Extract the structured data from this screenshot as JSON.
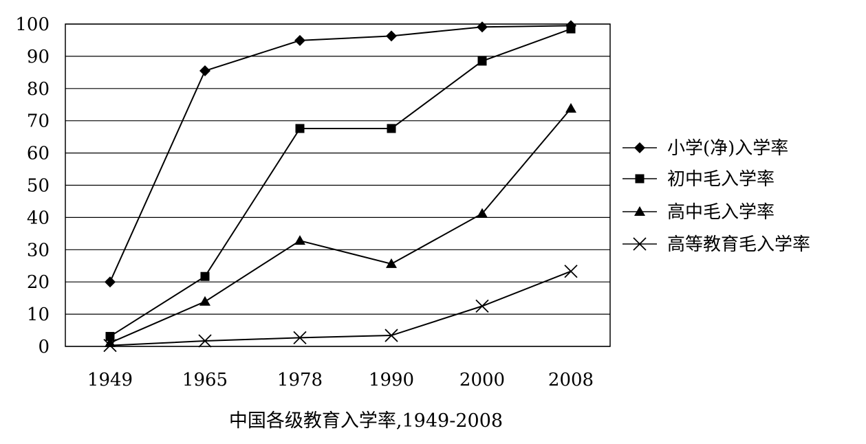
{
  "chart_data": {
    "type": "line",
    "title": "中国各级教育入学率,1949-2008",
    "xlabel": "",
    "ylabel": "",
    "categories": [
      "1949",
      "1965",
      "1978",
      "1990",
      "2000",
      "2008"
    ],
    "ylim": [
      0,
      100
    ],
    "yticks": [
      "0",
      "10",
      "20",
      "30",
      "40",
      "50",
      "60",
      "70",
      "80",
      "90",
      "100"
    ],
    "grid": "horizontal",
    "legend_position": "right",
    "series": [
      {
        "name": "小学(净)入学率",
        "marker": "diamond",
        "values": [
          20.0,
          85.5,
          94.9,
          96.3,
          99.1,
          99.5
        ]
      },
      {
        "name": "初中毛入学率",
        "marker": "square",
        "values": [
          3.1,
          21.7,
          67.6,
          67.6,
          88.5,
          98.5
        ]
      },
      {
        "name": "高中毛入学率",
        "marker": "triangle",
        "values": [
          1.1,
          13.9,
          32.8,
          25.6,
          41.2,
          73.8
        ]
      },
      {
        "name": "高等教育毛入学率",
        "marker": "cross",
        "values": [
          0.3,
          1.7,
          2.7,
          3.4,
          12.5,
          23.3
        ]
      }
    ]
  }
}
